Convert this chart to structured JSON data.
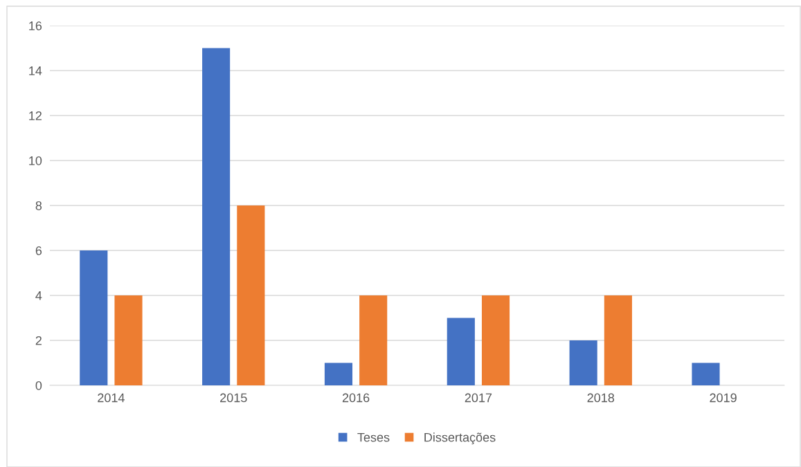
{
  "chart_data": {
    "type": "bar",
    "categories": [
      "2014",
      "2015",
      "2016",
      "2017",
      "2018",
      "2019"
    ],
    "series": [
      {
        "name": "Teses",
        "color": "#4472c4",
        "values": [
          6,
          15,
          1,
          3,
          2,
          1
        ]
      },
      {
        "name": "Dissertações",
        "color": "#ed7d31",
        "values": [
          4,
          8,
          4,
          4,
          4,
          0
        ]
      }
    ],
    "ylim": [
      0,
      16
    ],
    "yticks": [
      0,
      2,
      4,
      6,
      8,
      10,
      12,
      14,
      16
    ],
    "grid": "y",
    "legend": "bottom"
  }
}
